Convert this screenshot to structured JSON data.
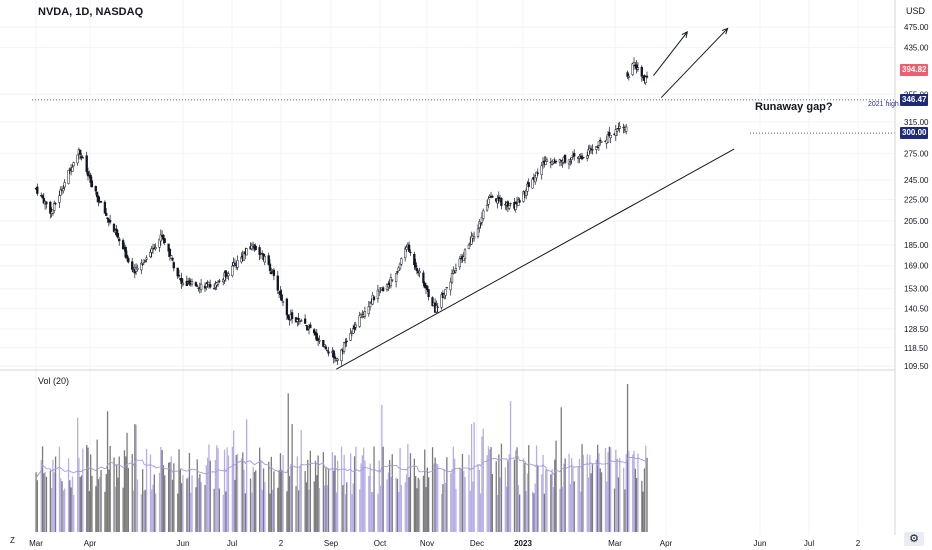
{
  "header": {
    "title": "NVDA, 1D, NASDAQ"
  },
  "currency": "USD",
  "volume_label": "Vol (20)",
  "annotation": "Runaway gap?",
  "level_2021": {
    "label": "2021 high",
    "value": "346.47",
    "color": "#1e2a78"
  },
  "level_300": {
    "value": "300.00",
    "color": "#1e2a78"
  },
  "last_price": {
    "value": "394.82",
    "color": "#f05d6c"
  },
  "y_ticks": [
    "475.00",
    "435.00",
    "355.00",
    "315.00",
    "275.00",
    "245.00",
    "225.00",
    "205.00",
    "185.00",
    "169.00",
    "153.00",
    "140.50",
    "128.50",
    "118.50",
    "109.50"
  ],
  "x_ticks": [
    "Mar",
    "Apr",
    "Jun",
    "Jul",
    "2",
    "Sep",
    "Oct",
    "Nov",
    "Dec",
    "2023",
    "Mar",
    "Apr",
    "Jun",
    "Jul",
    "2"
  ],
  "z_button": "Z",
  "settings_icon": "gear-icon",
  "chart_data": {
    "type": "candlestick",
    "title": "NVDA, 1D, NASDAQ",
    "ylabel": "USD",
    "y_scale": "log",
    "ylim": [
      105,
      500
    ],
    "anchors": [
      {
        "date": "2022-02-24",
        "close": 236
      },
      {
        "date": "2022-03-08",
        "close": 213
      },
      {
        "date": "2022-03-29",
        "close": 280
      },
      {
        "date": "2022-04-08",
        "close": 238
      },
      {
        "date": "2022-05-11",
        "close": 164
      },
      {
        "date": "2022-06-01",
        "close": 193
      },
      {
        "date": "2022-06-16",
        "close": 156
      },
      {
        "date": "2022-07-12",
        "close": 155
      },
      {
        "date": "2022-08-10",
        "close": 185
      },
      {
        "date": "2022-08-22",
        "close": 170
      },
      {
        "date": "2022-09-06",
        "close": 136
      },
      {
        "date": "2022-09-20",
        "close": 130
      },
      {
        "date": "2022-10-13",
        "close": 113
      },
      {
        "date": "2022-11-08",
        "close": 145
      },
      {
        "date": "2022-11-28",
        "close": 162
      },
      {
        "date": "2022-12-06",
        "close": 185
      },
      {
        "date": "2022-12-28",
        "close": 140
      },
      {
        "date": "2023-01-30",
        "close": 200
      },
      {
        "date": "2023-02-08",
        "close": 226
      },
      {
        "date": "2023-02-27",
        "close": 218
      },
      {
        "date": "2023-03-22",
        "close": 265
      },
      {
        "date": "2023-04-20",
        "close": 270
      },
      {
        "date": "2023-05-22",
        "close": 312
      },
      {
        "date": "2023-05-24",
        "close": 305
      },
      {
        "date": "2023-05-25",
        "close": 379
      },
      {
        "date": "2023-05-30",
        "close": 405
      },
      {
        "date": "2023-06-07",
        "close": 375
      },
      {
        "date": "2023-06-09",
        "close": 387
      }
    ],
    "volume_peak_date": "2023-05-25",
    "horizontal_levels": [
      346.47,
      300.0
    ],
    "trendline": {
      "from": {
        "date": "2022-10-13",
        "value": 108
      },
      "to": {
        "date": "2023-08-15",
        "value": 280
      }
    },
    "arrows": [
      {
        "from": {
          "date": "2023-06-14",
          "value": 385
        },
        "to": {
          "date": "2023-07-10",
          "value": 465
        }
      },
      {
        "from": {
          "date": "2023-06-20",
          "value": 350
        },
        "to": {
          "date": "2023-08-10",
          "value": 472
        }
      }
    ]
  }
}
